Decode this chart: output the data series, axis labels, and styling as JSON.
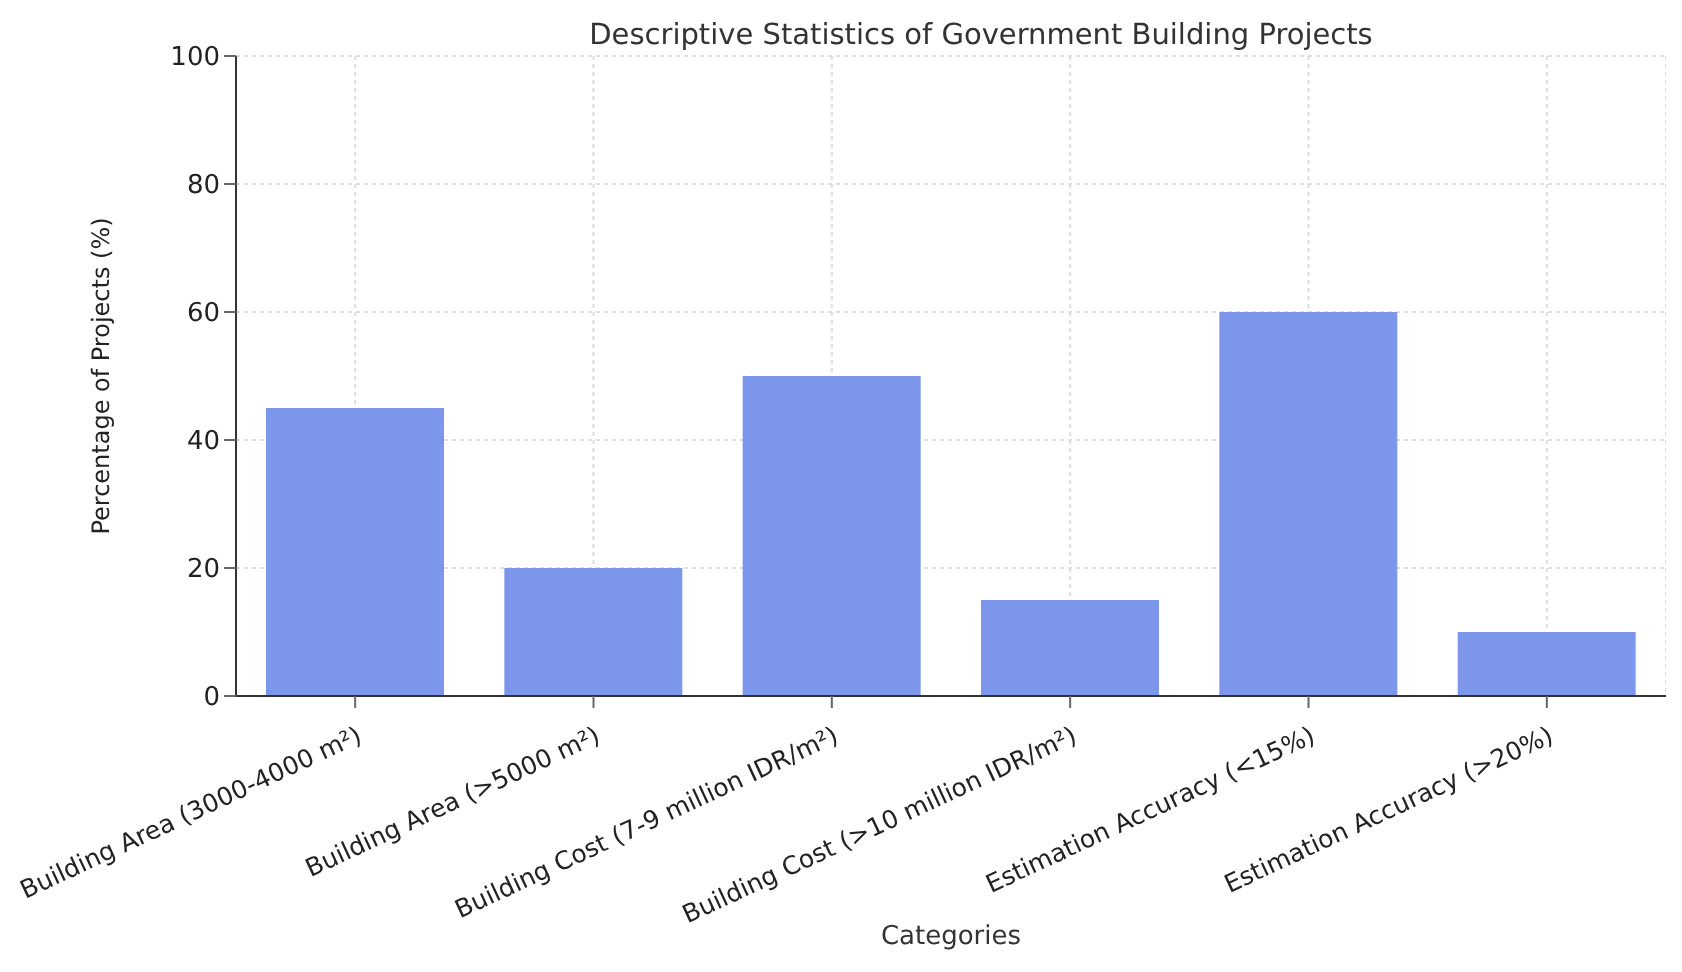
{
  "chart_data": {
    "type": "bar",
    "title": "Descriptive Statistics of Government Building Projects",
    "xlabel": "Categories",
    "ylabel": "Percentage of Projects (%)",
    "categories": [
      "Building Area (3000-4000 m²)",
      "Building Area (>5000 m²)",
      "Building Cost (7-9 million IDR/m²)",
      "Building Cost (>10 million IDR/m²)",
      "Estimation Accuracy (<15%)",
      "Estimation Accuracy (>20%)"
    ],
    "values": [
      45,
      20,
      50,
      15,
      60,
      10
    ],
    "color": "#7b96ea",
    "ylim": [
      0,
      100
    ],
    "yticks": [
      0,
      20,
      40,
      60,
      80,
      100
    ],
    "grid": true
  }
}
